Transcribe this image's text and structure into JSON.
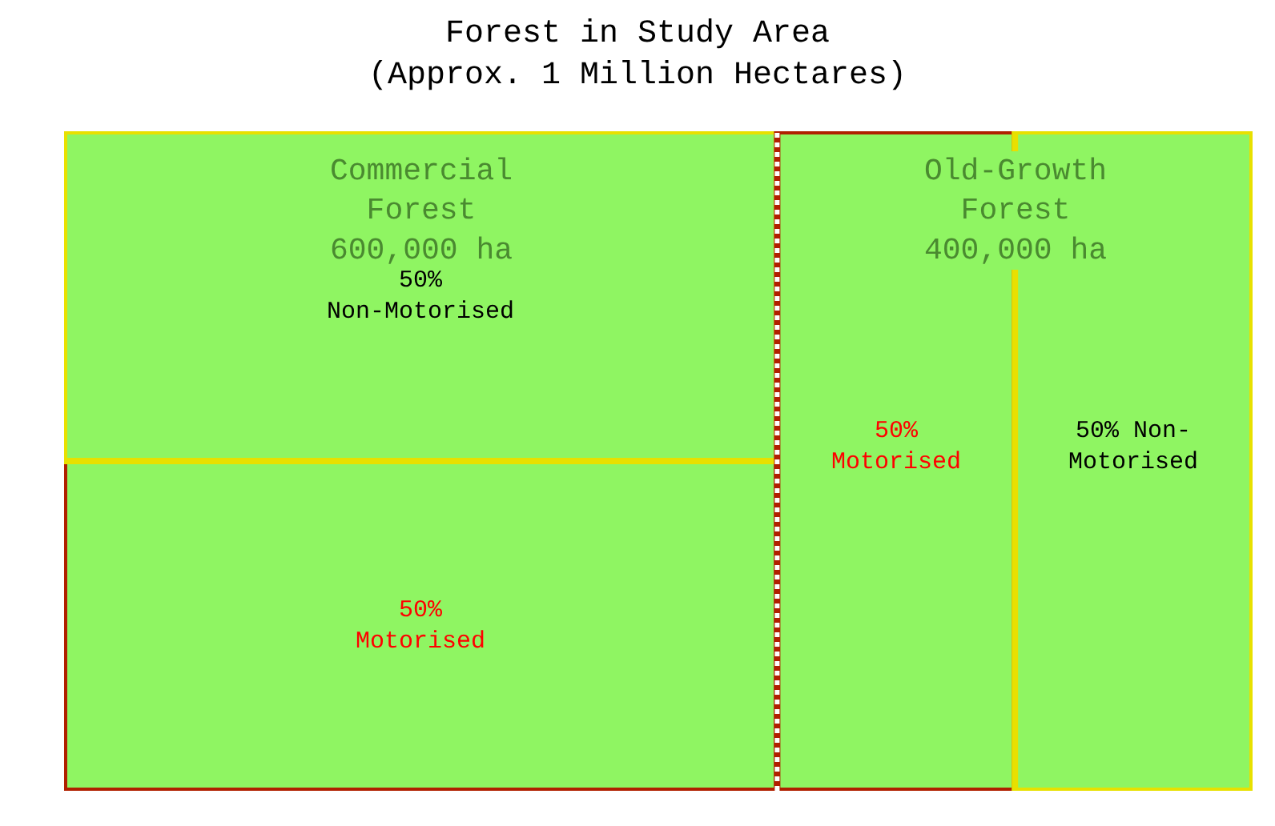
{
  "chart_data": {
    "type": "other",
    "title": "Forest in Study Area\n(Approx. 1 Million Hectares)",
    "categories": [
      "Commercial\nForest",
      "Old-Growth\nForest"
    ],
    "values": [
      600000,
      400000
    ],
    "value_labels": [
      "600,000 ha",
      "400,000 ha"
    ],
    "series": [
      {
        "color": "#8ff562",
        "values": [
          50,
          50
        ],
        "value_labels": [
          "50%\nMotorised",
          "50%\nMotorised"
        ]
      },
      {
        "color": "#8ff562",
        "values": [
          50,
          50
        ],
        "value_labels": [
          "50%\nNon-Motorised",
          "50% Non-\nMotorised"
        ]
      }
    ]
  }
}
